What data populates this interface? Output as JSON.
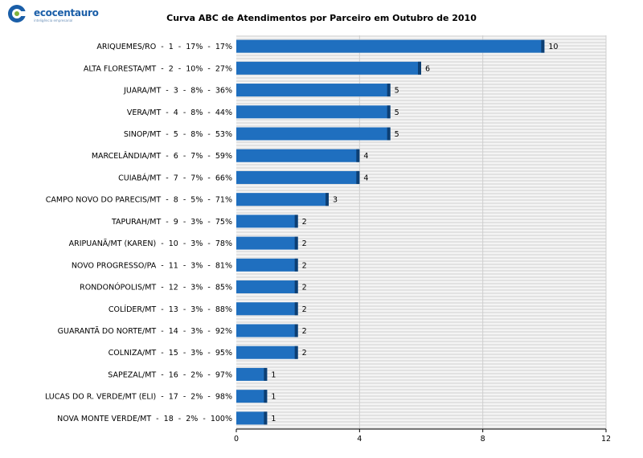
{
  "branding": {
    "logo_text": "ecocentauro",
    "logo_tagline": "inteligência empresarial",
    "accent_color": "#1a5ea8"
  },
  "chart_data": {
    "type": "bar",
    "orientation": "horizontal",
    "title": "Curva ABC de Atendimentos por Parceiro em Outubro de 2010",
    "xlabel": "",
    "ylabel": "",
    "xlim": [
      0,
      12
    ],
    "ticks": [
      0,
      4,
      8,
      12
    ],
    "grid": true,
    "legend": "none",
    "bar_color": "#1f6fbf",
    "categories": [
      "ARIQUEMES/RO  -  1  -  17%  -  17%",
      "ALTA FLORESTA/MT  -  2  -  10%  -  27%",
      "JUARA/MT  -  3  -  8%  -  36%",
      "VERA/MT  -  4  -  8%  -  44%",
      "SINOP/MT  -  5  -  8%  -  53%",
      "MARCELÂNDIA/MT  -  6  -  7%  -  59%",
      "CUIABÁ/MT  -  7  -  7%  -  66%",
      "CAMPO NOVO DO PARECIS/MT  -  8  -  5%  -  71%",
      "TAPURAH/MT  -  9  -  3%  -  75%",
      "ARIPUANÃ/MT (KAREN)  -  10  -  3%  -  78%",
      "NOVO PROGRESSO/PA  -  11  -  3%  -  81%",
      "RONDONÓPOLIS/MT  -  12  -  3%  -  85%",
      "COLÍDER/MT  -  13  -  3%  -  88%",
      "GUARANTÃ DO NORTE/MT  -  14  -  3%  -  92%",
      "COLNIZA/MT  -  15  -  3%  -  95%",
      "SAPEZAL/MT  -  16  -  2%  -  97%",
      "LUCAS DO R. VERDE/MT (ELI)  -  17  -  2%  -  98%",
      "NOVA MONTE VERDE/MT  -  18  -  2%  -  100%"
    ],
    "values": [
      10,
      6,
      5,
      5,
      5,
      4,
      4,
      3,
      2,
      2,
      2,
      2,
      2,
      2,
      2,
      1,
      1,
      1
    ]
  }
}
